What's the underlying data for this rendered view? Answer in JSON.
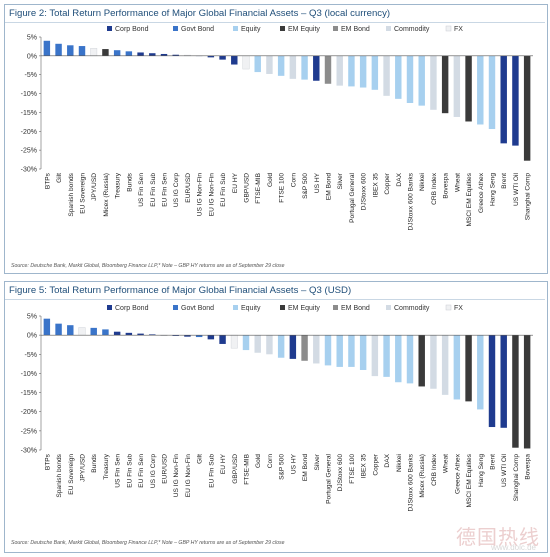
{
  "colors": {
    "Corp Bond": "#1f3b8f",
    "Govt Bond": "#3a74c9",
    "Equity": "#a7d0ef",
    "EM Equity": "#3a3a3a",
    "EM Bond": "#8c8c8c",
    "Commodity": "#d3dbe4",
    "FX": "#f0f1f3"
  },
  "watermark": {
    "text": "德国热线",
    "url": "www.dolc.de"
  },
  "figures": [
    {
      "title": "Figure 2: Total Return Performance of Major Global Financial Assets – Q3 (local currency)",
      "source": "Source: Deutsche Bank, Markit Global, Bloomberg Finance LLP,* Note – GBP HY returns are as of September 29 close",
      "chart_data": {
        "type": "bar",
        "legend": [
          "Corp Bond",
          "Govt Bond",
          "Equity",
          "EM Equity",
          "EM Bond",
          "Commodity",
          "FX"
        ],
        "legend_position": "top",
        "ylim": [
          -30,
          5
        ],
        "yticks": [
          "5%",
          "0%",
          "-5%",
          "-10%",
          "-15%",
          "-20%",
          "-25%",
          "-30%"
        ],
        "categories": [
          "BTPs",
          "Gilt",
          "Spanish bonds",
          "EU Sovereign",
          "JPY/USD",
          "Micex (Russia)",
          "Treasury",
          "Bunds",
          "US Fin Sen",
          "EU Fin Sub",
          "EU Fin Sen",
          "US IG Corp",
          "EUR/USD",
          "US IG Non-Fin",
          "EU IG Non-Fin",
          "EU Fin Sub",
          "EU HY",
          "GBP/USD",
          "FTSE-MIB",
          "Gold",
          "FTSE 100",
          "Corn",
          "S&P 500",
          "US HY",
          "EM Bond",
          "Silver",
          "Portugal General",
          "DJStoxx 600",
          "IBEX 35",
          "Copper",
          "DAX",
          "DJStoxx 600 Banks",
          "Nikkei",
          "CRB Index",
          "Bovespa",
          "Wheat",
          "MSCI EM Equities",
          "Greece Athex",
          "Hang Seng",
          "Brent",
          "US WTI Oil",
          "Shanghai Comp"
        ],
        "groups": [
          "Govt Bond",
          "Govt Bond",
          "Govt Bond",
          "Govt Bond",
          "FX",
          "EM Equity",
          "Govt Bond",
          "Govt Bond",
          "Corp Bond",
          "Corp Bond",
          "Corp Bond",
          "Corp Bond",
          "FX",
          "Corp Bond",
          "Corp Bond",
          "Corp Bond",
          "Corp Bond",
          "FX",
          "Equity",
          "Commodity",
          "Equity",
          "Commodity",
          "Equity",
          "Corp Bond",
          "EM Bond",
          "Commodity",
          "Equity",
          "Equity",
          "Equity",
          "Commodity",
          "Equity",
          "Equity",
          "Equity",
          "Commodity",
          "EM Equity",
          "Commodity",
          "EM Equity",
          "Equity",
          "Equity",
          "Corp Bond",
          "Corp Bond",
          "EM Equity"
        ],
        "values": [
          4.0,
          3.2,
          2.8,
          2.6,
          2.0,
          1.8,
          1.5,
          1.2,
          0.9,
          0.7,
          0.5,
          0.3,
          0.2,
          0.1,
          -0.4,
          -1.0,
          -2.3,
          -3.5,
          -4.3,
          -4.8,
          -5.3,
          -6.1,
          -6.3,
          -6.6,
          -7.4,
          -7.9,
          -8.1,
          -8.4,
          -9.0,
          -10.6,
          -11.4,
          -12.5,
          -13.2,
          -14.3,
          -15.2,
          -16.2,
          -17.4,
          -18.2,
          -19.4,
          -23.2,
          -23.8,
          -27.8
        ]
      }
    },
    {
      "title": "Figure 5: Total Return Performance of Major Global Financial Assets – Q3 (USD)",
      "source": "Source: Deutsche Bank, Markit Global, Bloomberg Finance LLP,* Note – GBP HY returns are as of September 29 close",
      "chart_data": {
        "type": "bar",
        "legend": [
          "Corp Bond",
          "Govt Bond",
          "Equity",
          "EM Equity",
          "EM Bond",
          "Commodity",
          "FX"
        ],
        "legend_position": "top",
        "ylim": [
          -30,
          5
        ],
        "yticks": [
          "5%",
          "0%",
          "-5%",
          "-10%",
          "-15%",
          "-20%",
          "-25%",
          "-30%"
        ],
        "categories": [
          "BTPs",
          "Spanish bonds",
          "EU Sovereign",
          "JPY/USD",
          "Bunds",
          "Treasury",
          "US Fin Sen",
          "EU Fin Sub",
          "EU Fin Sen",
          "US IG Corp",
          "EUR/USD",
          "US IG Non-Fin",
          "EU IG Non-Fin",
          "Gilt",
          "EU Fin Sub",
          "EU HY",
          "GBP/USD",
          "FTSE-MIB",
          "Gold",
          "Corn",
          "S&P 500",
          "US HY",
          "EM Bond",
          "Silver",
          "Portugal General",
          "DJStoxx 600",
          "FTSE 100",
          "IBEX 35",
          "Copper",
          "DAX",
          "Nikkei",
          "DJStoxx 600 Banks",
          "Micex (Russia)",
          "CRB Index",
          "Wheat",
          "Greece Athex",
          "MSCI EM Equities",
          "Hang Seng",
          "Brent",
          "US WTI Oil",
          "Shanghai Comp",
          "Bovespa"
        ],
        "groups": [
          "Govt Bond",
          "Govt Bond",
          "Govt Bond",
          "FX",
          "Govt Bond",
          "Govt Bond",
          "Corp Bond",
          "Corp Bond",
          "Corp Bond",
          "Corp Bond",
          "FX",
          "Corp Bond",
          "Corp Bond",
          "Govt Bond",
          "Corp Bond",
          "Corp Bond",
          "FX",
          "Equity",
          "Commodity",
          "Commodity",
          "Equity",
          "Corp Bond",
          "EM Bond",
          "Commodity",
          "Equity",
          "Equity",
          "Equity",
          "Equity",
          "Commodity",
          "Equity",
          "Equity",
          "Equity",
          "EM Equity",
          "Commodity",
          "Commodity",
          "Equity",
          "EM Equity",
          "Equity",
          "Corp Bond",
          "Corp Bond",
          "EM Equity",
          "EM Equity"
        ],
        "values": [
          4.3,
          3.0,
          2.6,
          2.0,
          1.9,
          1.5,
          0.9,
          0.6,
          0.4,
          0.2,
          -0.1,
          -0.2,
          -0.4,
          -0.5,
          -1.1,
          -2.3,
          -3.4,
          -3.9,
          -4.6,
          -5.0,
          -5.9,
          -6.2,
          -6.7,
          -7.4,
          -7.9,
          -8.3,
          -8.3,
          -9.1,
          -10.7,
          -10.9,
          -12.3,
          -12.6,
          -13.4,
          -14.0,
          -15.6,
          -16.8,
          -17.3,
          -19.4,
          -24.0,
          -24.2,
          -29.4,
          -29.6
        ]
      }
    }
  ]
}
